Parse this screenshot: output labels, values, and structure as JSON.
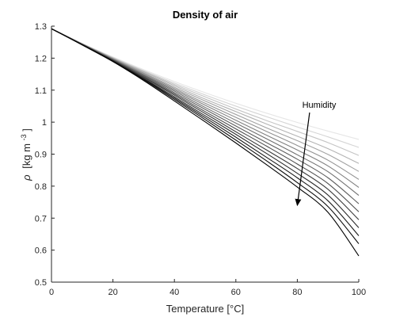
{
  "chart_data": {
    "type": "line",
    "title": "Density of air",
    "xlabel": "Temperature [°C]",
    "ylabel_symbol": "ρ",
    "ylabel_unit": "[kg m",
    "ylabel_exp": "-3",
    "ylabel_close": "]",
    "xlim": [
      0,
      100
    ],
    "ylim": [
      0.5,
      1.3
    ],
    "xticks": [
      0,
      20,
      40,
      60,
      80,
      100
    ],
    "yticks": [
      0.5,
      0.6,
      0.7,
      0.8,
      0.9,
      1,
      1.1,
      1.2,
      1.3
    ],
    "xtick_labels": [
      "0",
      "20",
      "40",
      "60",
      "80",
      "100"
    ],
    "ytick_labels": [
      "0.5",
      "0.6",
      "0.7",
      "0.8",
      "0.9",
      "1",
      "1.1",
      "1.2",
      "1.3"
    ],
    "grid": false,
    "annotation": {
      "text": "Humidity",
      "arrow_from": [
        84,
        1.03
      ],
      "arrow_to": [
        80,
        0.74
      ]
    },
    "x": [
      0,
      10,
      20,
      30,
      40,
      50,
      60,
      70,
      80,
      90,
      100
    ],
    "series": [
      {
        "color": "#e6e6e6",
        "values": [
          1.292,
          1.246,
          1.204,
          1.164,
          1.127,
          1.092,
          1.059,
          1.028,
          0.999,
          0.972,
          0.946
        ]
      },
      {
        "color": "#d5d5d5",
        "values": [
          1.292,
          1.245,
          1.202,
          1.161,
          1.122,
          1.085,
          1.05,
          1.017,
          0.985,
          0.954,
          0.921
        ]
      },
      {
        "color": "#c4c4c4",
        "values": [
          1.292,
          1.245,
          1.201,
          1.159,
          1.118,
          1.079,
          1.041,
          1.005,
          0.971,
          0.936,
          0.896
        ]
      },
      {
        "color": "#b3b3b3",
        "values": [
          1.292,
          1.245,
          1.2,
          1.157,
          1.114,
          1.072,
          1.033,
          0.994,
          0.956,
          0.917,
          0.871
        ]
      },
      {
        "color": "#a2a2a2",
        "values": [
          1.292,
          1.244,
          1.199,
          1.154,
          1.109,
          1.066,
          1.024,
          0.982,
          0.942,
          0.899,
          0.846
        ]
      },
      {
        "color": "#919191",
        "values": [
          1.292,
          1.244,
          1.198,
          1.152,
          1.105,
          1.059,
          1.015,
          0.971,
          0.927,
          0.881,
          0.821
        ]
      },
      {
        "color": "#808080",
        "values": [
          1.292,
          1.244,
          1.197,
          1.149,
          1.101,
          1.053,
          1.006,
          0.959,
          0.913,
          0.863,
          0.796
        ]
      },
      {
        "color": "#6f6f6f",
        "values": [
          1.292,
          1.244,
          1.196,
          1.147,
          1.097,
          1.046,
          0.997,
          0.948,
          0.898,
          0.845,
          0.771
        ]
      },
      {
        "color": "#5e5e5e",
        "values": [
          1.292,
          1.243,
          1.195,
          1.145,
          1.092,
          1.04,
          0.988,
          0.936,
          0.884,
          0.826,
          0.745
        ]
      },
      {
        "color": "#4d4d4d",
        "values": [
          1.292,
          1.243,
          1.194,
          1.142,
          1.088,
          1.033,
          0.979,
          0.925,
          0.869,
          0.808,
          0.72
        ]
      },
      {
        "color": "#3c3c3c",
        "values": [
          1.292,
          1.243,
          1.193,
          1.14,
          1.084,
          1.027,
          0.97,
          0.913,
          0.855,
          0.79,
          0.695
        ]
      },
      {
        "color": "#2b2b2b",
        "values": [
          1.292,
          1.242,
          1.192,
          1.137,
          1.079,
          1.02,
          0.962,
          0.902,
          0.84,
          0.772,
          0.67
        ]
      },
      {
        "color": "#1a1a1a",
        "values": [
          1.292,
          1.242,
          1.191,
          1.135,
          1.075,
          1.014,
          0.953,
          0.89,
          0.826,
          0.754,
          0.645
        ]
      },
      {
        "color": "#0d0d0d",
        "values": [
          1.292,
          1.242,
          1.19,
          1.133,
          1.071,
          1.008,
          0.944,
          0.879,
          0.811,
          0.736,
          0.62
        ]
      },
      {
        "color": "#000000",
        "values": [
          1.292,
          1.241,
          1.189,
          1.13,
          1.066,
          1.001,
          0.935,
          0.867,
          0.797,
          0.718,
          0.582
        ]
      }
    ]
  }
}
